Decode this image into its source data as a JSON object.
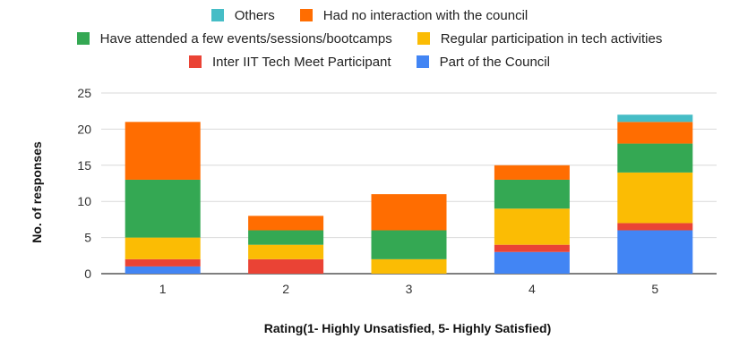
{
  "chart_data": {
    "type": "bar",
    "stacked": true,
    "categories": [
      "1",
      "2",
      "3",
      "4",
      "5"
    ],
    "series": [
      {
        "name": "Part of the Council",
        "color": "#4285f4",
        "values": [
          1,
          0,
          0,
          3,
          6
        ]
      },
      {
        "name": "Inter IIT Tech Meet Participant",
        "color": "#ea4335",
        "values": [
          1,
          2,
          0,
          1,
          1
        ]
      },
      {
        "name": "Regular participation in tech activities",
        "color": "#fbbc04",
        "values": [
          3,
          2,
          2,
          5,
          7
        ]
      },
      {
        "name": "Have attended a few events/sessions/bootcamps",
        "color": "#34a853",
        "values": [
          8,
          2,
          4,
          4,
          4
        ]
      },
      {
        "name": "Had no interaction with the council",
        "color": "#ff6d01",
        "values": [
          8,
          2,
          5,
          2,
          3
        ]
      },
      {
        "name": "Others",
        "color": "#46bdc6",
        "values": [
          0,
          0,
          0,
          0,
          1
        ]
      }
    ],
    "xlabel": "Rating(1- Highly Unsatisfied, 5- Highly Satisfied)",
    "ylabel": "No. of responses",
    "ylim": [
      0,
      25
    ],
    "yticks": [
      0,
      5,
      10,
      15,
      20,
      25
    ],
    "grid": true,
    "legend_position": "top",
    "legend_rows": [
      [
        "Others",
        "Had no interaction with the council"
      ],
      [
        "Have attended a few events/sessions/bootcamps",
        "Regular participation in tech activities"
      ],
      [
        "Inter IIT Tech Meet Participant",
        "Part of the Council"
      ]
    ]
  }
}
